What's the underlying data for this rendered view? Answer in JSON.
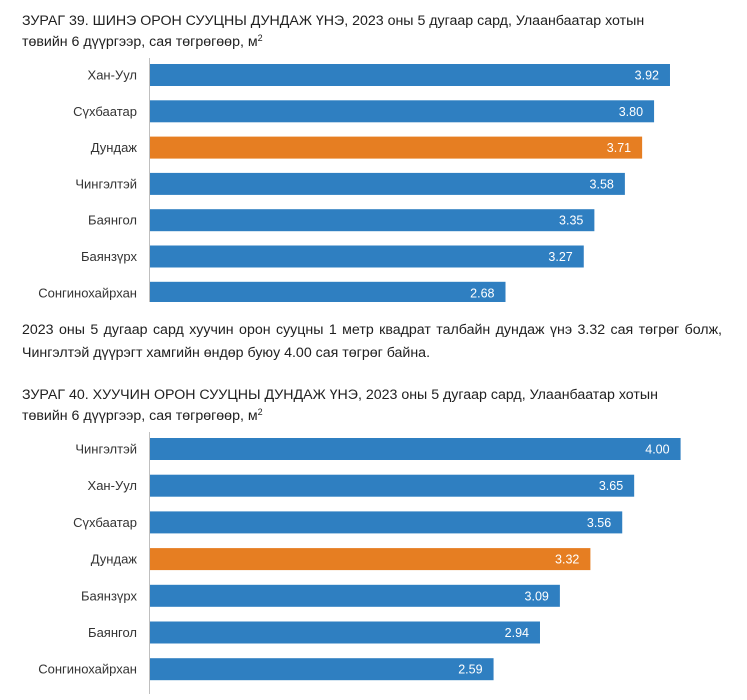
{
  "figure1": {
    "title_line1": "ЗУРАГ 39.  ШИНЭ ОРОН СУУЦНЫ ДУНДАЖ ҮНЭ, 2023 оны 5 дугаар сард, Улаанбаатар хотын",
    "title_line2": "төвийн 6 дүүргээр, сая төгрөгөөр, м",
    "title_sup": "2"
  },
  "paragraph": {
    "text": "2023 оны 5 дугаар сард хуучин орон сууцны 1 метр квадрат талбайн дундаж үнэ 3.32 сая төгрөг болж, Чингэлтэй дүүрэгт хамгийн өндөр буюу 4.00 сая төгрөг байна."
  },
  "figure2": {
    "title_line1": "ЗУРАГ 40. ХУУЧИН ОРОН СУУЦНЫ ДУНДАЖ ҮНЭ, 2023 оны 5 дугаар сард, Улаанбаатар хотын",
    "title_line2": "төвийн 6 дүүргээр, сая төгрөгөөр, м",
    "title_sup": "2"
  },
  "colors": {
    "bar": "#2f7fc1",
    "highlight": "#e67e22",
    "axis": "#bfbfbf"
  },
  "chart_data": [
    {
      "type": "bar",
      "orientation": "horizontal",
      "categories": [
        "Хан-Уул",
        "Сүхбаатар",
        "Дундаж",
        "Чингэлтэй",
        "Баянгол",
        "Баянзүрх",
        "Сонгинохайрхан"
      ],
      "values": [
        3.92,
        3.8,
        3.71,
        3.58,
        3.35,
        3.27,
        2.68
      ],
      "labels": [
        "3.92",
        "3.80",
        "3.71",
        "3.58",
        "3.35",
        "3.27",
        "2.68"
      ],
      "highlight_category": "Дундаж",
      "xlim": [
        0,
        4.5
      ]
    },
    {
      "type": "bar",
      "orientation": "horizontal",
      "categories": [
        "Чингэлтэй",
        "Хан-Уул",
        "Сүхбаатар",
        "Дундаж",
        "Баянзүрх",
        "Баянгол",
        "Сонгинохайрхан"
      ],
      "values": [
        4.0,
        3.65,
        3.56,
        3.32,
        3.09,
        2.94,
        2.59
      ],
      "labels": [
        "4.00",
        "3.65",
        "3.56",
        "3.32",
        "3.09",
        "2.94",
        "2.59"
      ],
      "highlight_category": "Дундаж",
      "xlim": [
        0,
        4.5
      ]
    }
  ]
}
